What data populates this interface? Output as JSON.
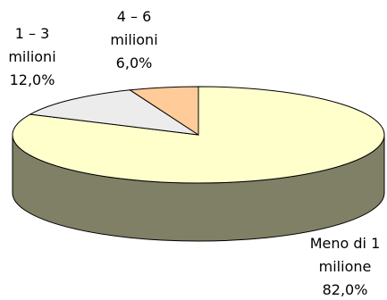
{
  "chart_data": {
    "type": "pie",
    "style": "3d",
    "slices": [
      {
        "category": [
          "Meno di 1",
          "milione"
        ],
        "value": 82.0,
        "value_label": "82,0%",
        "color": "#ffffcc",
        "side_color": "#808066"
      },
      {
        "category": [
          "1 – 3",
          "milioni"
        ],
        "value": 12.0,
        "value_label": "12,0%",
        "color": "#ececec",
        "side_color": "#969696"
      },
      {
        "category": [
          "4 – 6",
          "milioni"
        ],
        "value": 6.0,
        "value_label": "6,0%",
        "color": "#ffcc99",
        "side_color": "#996633"
      }
    ]
  }
}
